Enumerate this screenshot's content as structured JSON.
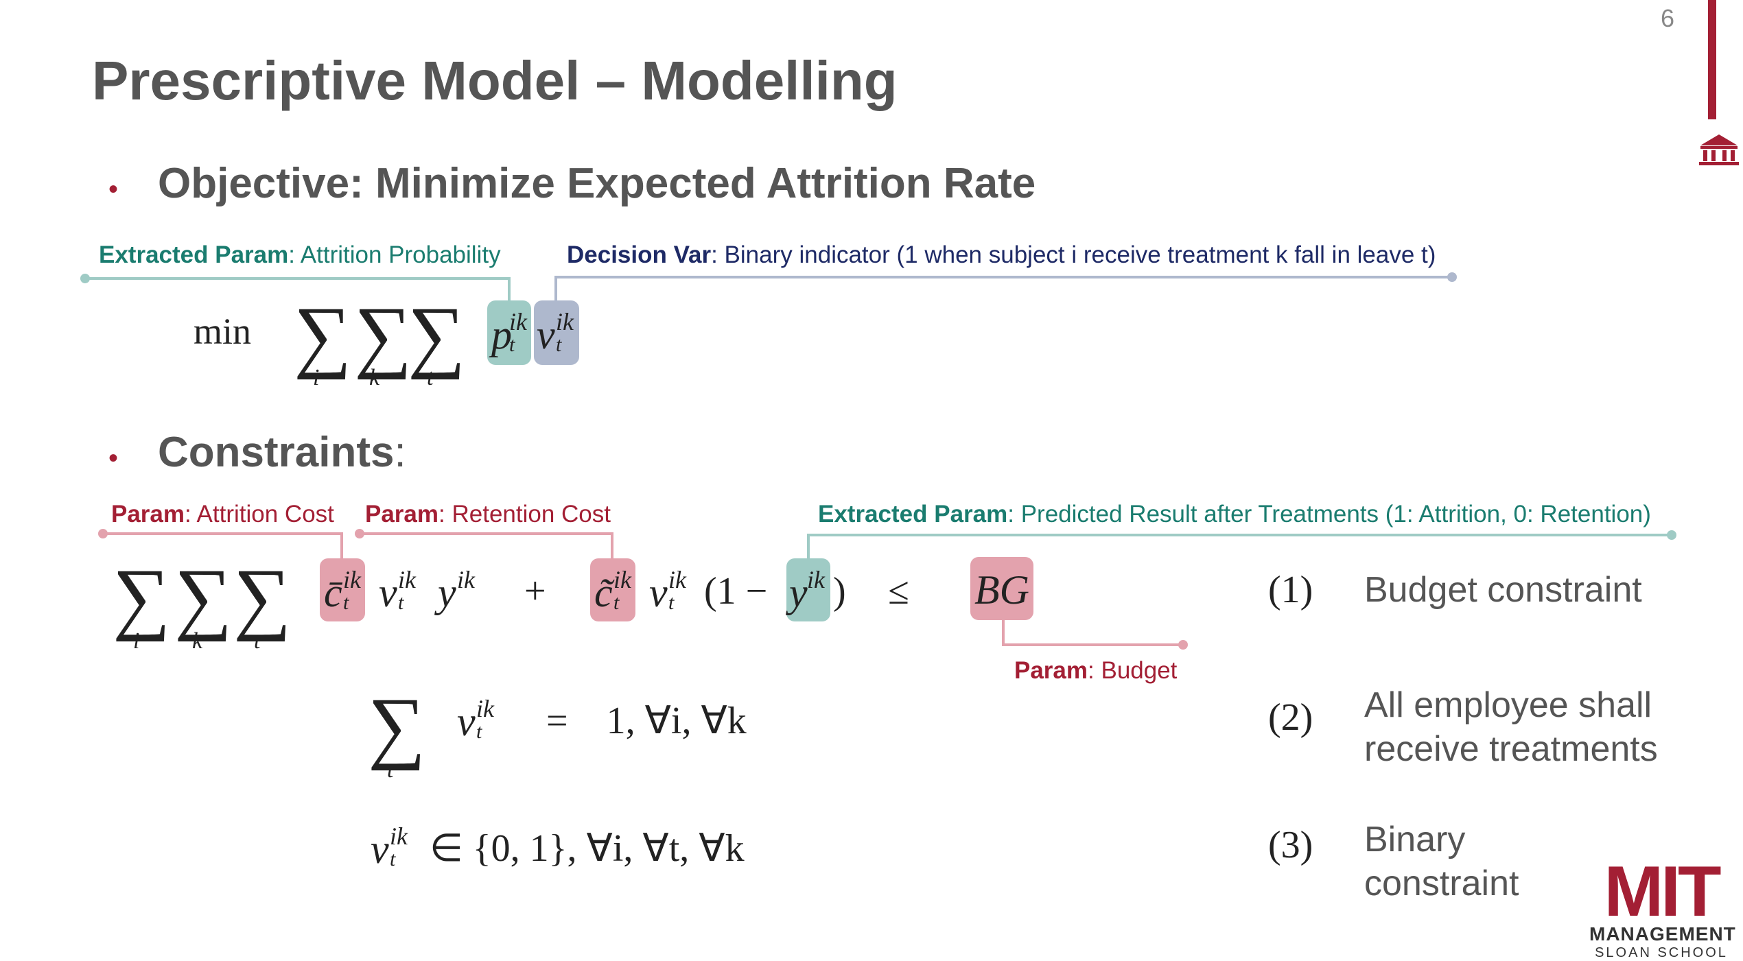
{
  "slide": {
    "page_number": "6",
    "title": "Prescriptive Model – Modelling"
  },
  "objective": {
    "bullet": "•",
    "heading": "Objective: Minimize Expected Attrition Rate",
    "extracted_param_label": "Extracted Param",
    "extracted_param_text": ": Attrition Probability",
    "decision_var_label": "Decision Var",
    "decision_var_text": ": Binary indicator (1 when subject i receive treatment k fall in leave t)",
    "formula": {
      "min": "min",
      "sigma": "∑",
      "idx_i": "i",
      "idx_k": "k",
      "idx_t": "t",
      "p": "p",
      "v": "v",
      "sup": "ik",
      "sub": "t"
    }
  },
  "constraints": {
    "bullet": "•",
    "heading": "Constraints",
    "colon": ":",
    "param_label": "Param",
    "attrition_cost_text": ": Attrition Cost",
    "retention_cost_text": ": Retention Cost",
    "extracted_param_label": "Extracted Param",
    "predicted_text": ": Predicted Result after Treatments (1: Attrition, 0: Retention)",
    "budget_text": ": Budget",
    "c1": {
      "cbar": "c̄",
      "ctilde": "c̃",
      "v": "v",
      "y": "y",
      "sup": "ik",
      "sub": "t",
      "plus": "+",
      "paren_open": "(1 −",
      "paren_close": ")",
      "leq": "≤",
      "bg": "BG",
      "number": "(1)",
      "desc": "Budget constraint"
    },
    "c2": {
      "rhs": "=    1, ∀i, ∀k",
      "number": "(2)",
      "desc_line1": "All employee shall",
      "desc_line2": "receive treatments"
    },
    "c3": {
      "rhs": "∈ {0, 1}, ∀i, ∀t, ∀k",
      "number": "(3)",
      "desc_line1": "Binary",
      "desc_line2": "constraint"
    }
  },
  "logo": {
    "wordmark": "MIT",
    "line1": "MANAGEMENT",
    "line2": "SLOAN SCHOOL"
  },
  "colors": {
    "mit_red": "#A31F34",
    "green": "#1A7C6F",
    "navy": "#1E2A66",
    "title_gray": "#555555"
  }
}
